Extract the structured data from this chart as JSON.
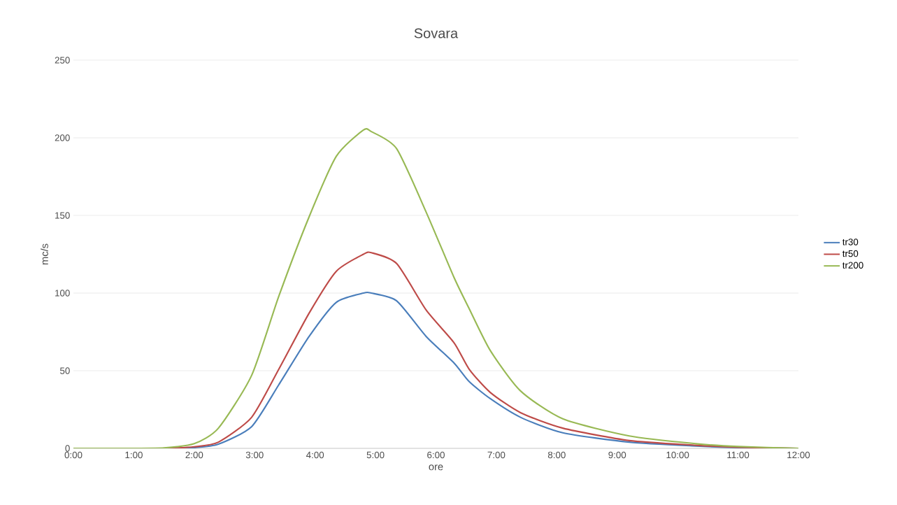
{
  "chart_data": {
    "type": "line",
    "title": "Sovara",
    "xlabel": "ore",
    "ylabel": "mc/s",
    "x": [
      0,
      1,
      1.5,
      2,
      2.4,
      2.95,
      3.4,
      3.9,
      4.35,
      4.8,
      4.93,
      5.35,
      5.84,
      6.3,
      6.55,
      6.9,
      7.4,
      8.1,
      9.2,
      10.3,
      11,
      12
    ],
    "series": [
      {
        "name": "tr30",
        "color": "#4a7ebb",
        "values": [
          null,
          null,
          0,
          0.5,
          2.7,
          14,
          41,
          72,
          94,
          100,
          100,
          95,
          72,
          55,
          43,
          32,
          20,
          10,
          4,
          1.5,
          0.5,
          0
        ]
      },
      {
        "name": "tr50",
        "color": "#be4b48",
        "values": [
          0,
          0,
          0,
          1,
          4,
          20,
          51,
          87,
          114,
          125,
          126,
          119,
          89,
          68,
          51,
          36,
          23,
          13,
          5,
          2,
          0.7,
          0
        ]
      },
      {
        "name": "tr200",
        "color": "#98b954",
        "values": [
          0,
          0,
          0.3,
          3,
          13,
          47,
          98,
          149,
          188,
          205,
          204,
          193,
          152,
          110,
          90,
          63,
          37,
          19,
          8,
          3,
          1.2,
          0
        ]
      }
    ],
    "xlim": [
      0,
      12
    ],
    "ylim": [
      0,
      250
    ],
    "xticks": [
      {
        "value": 0,
        "label": "0:00"
      },
      {
        "value": 1,
        "label": "1:00"
      },
      {
        "value": 2,
        "label": "2:00"
      },
      {
        "value": 3,
        "label": "3:00"
      },
      {
        "value": 4,
        "label": "4:00"
      },
      {
        "value": 5,
        "label": "5:00"
      },
      {
        "value": 6,
        "label": "6:00"
      },
      {
        "value": 7,
        "label": "7:00"
      },
      {
        "value": 8,
        "label": "8:00"
      },
      {
        "value": 9,
        "label": "9:00"
      },
      {
        "value": 10,
        "label": "10:00"
      },
      {
        "value": 11,
        "label": "11:00"
      },
      {
        "value": 12,
        "label": "12:00"
      }
    ],
    "yticks": [
      0,
      50,
      100,
      150,
      200,
      250
    ],
    "grid": "y",
    "legend": "right",
    "marker": "none",
    "line_style": "solid"
  }
}
